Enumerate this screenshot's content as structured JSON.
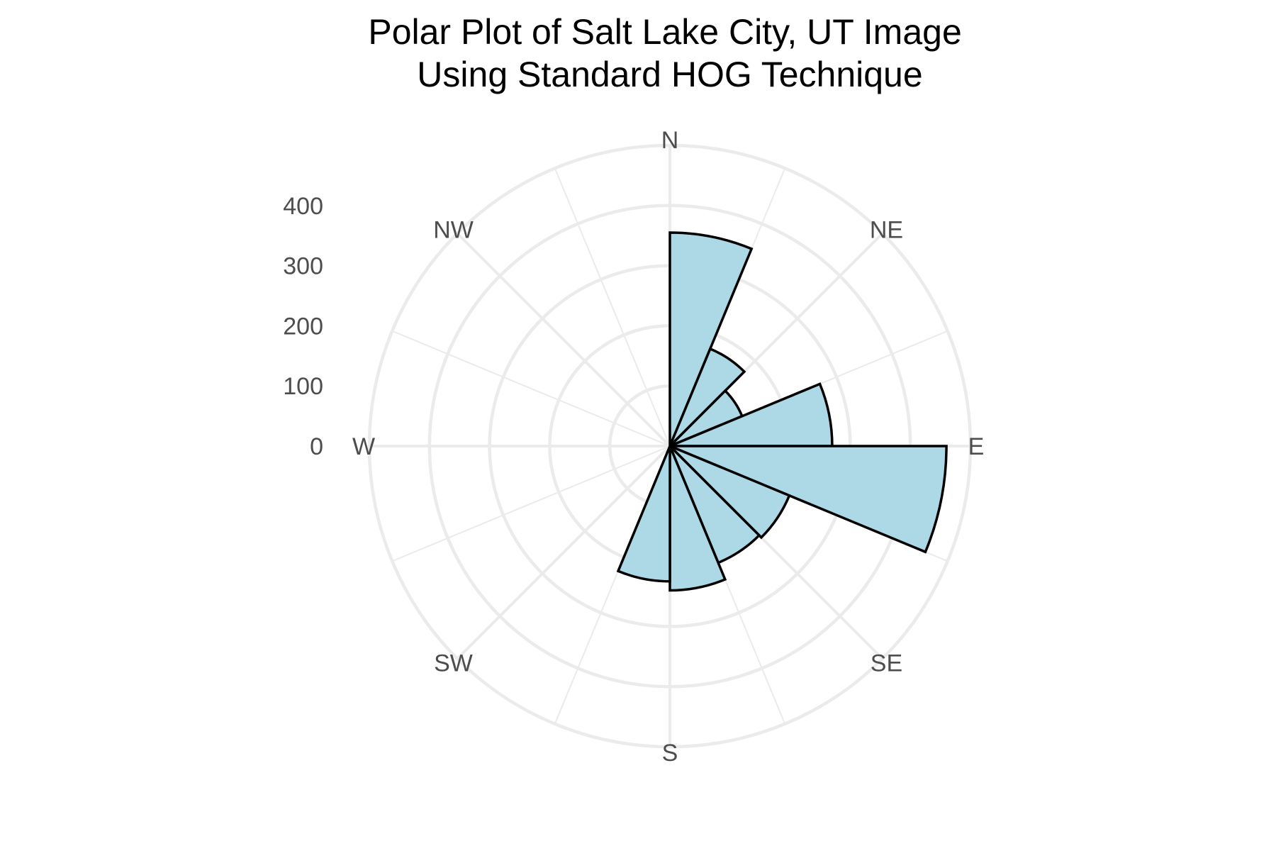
{
  "chart_data": {
    "type": "bar",
    "coordinate_system": "polar",
    "title": "Polar Plot of Salt Lake City, UT Image\nUsing Standard HOG Technique",
    "directions": [
      {
        "label": "N",
        "angle": 0
      },
      {
        "label": "NE",
        "angle": 45
      },
      {
        "label": "E",
        "angle": 90
      },
      {
        "label": "SE",
        "angle": 135
      },
      {
        "label": "S",
        "angle": 180
      },
      {
        "label": "SW",
        "angle": 225
      },
      {
        "label": "W",
        "angle": 270
      },
      {
        "label": "NW",
        "angle": 315
      }
    ],
    "radial_ticks": [
      0,
      100,
      200,
      300,
      400
    ],
    "rlim": [
      0,
      500
    ],
    "bins": [
      {
        "start": 0,
        "end": 22.5,
        "value": 355
      },
      {
        "start": 22.5,
        "end": 45,
        "value": 175
      },
      {
        "start": 45,
        "end": 67.5,
        "value": 130
      },
      {
        "start": 67.5,
        "end": 90,
        "value": 270
      },
      {
        "start": 90,
        "end": 112.5,
        "value": 460
      },
      {
        "start": 112.5,
        "end": 135,
        "value": 215
      },
      {
        "start": 135,
        "end": 157.5,
        "value": 210
      },
      {
        "start": 157.5,
        "end": 180,
        "value": 240
      },
      {
        "start": 180,
        "end": 202.5,
        "value": 225
      },
      {
        "start": 202.5,
        "end": 225,
        "value": 0
      },
      {
        "start": 225,
        "end": 247.5,
        "value": 0
      },
      {
        "start": 247.5,
        "end": 270,
        "value": 0
      },
      {
        "start": 270,
        "end": 292.5,
        "value": 0
      },
      {
        "start": 292.5,
        "end": 315,
        "value": 0
      },
      {
        "start": 315,
        "end": 337.5,
        "value": 0
      },
      {
        "start": 337.5,
        "end": 360,
        "value": 0
      }
    ],
    "grid": true,
    "legend": "none",
    "colors": {
      "bar_fill": "#add8e6",
      "bar_outline": "#000000",
      "grid": "#ebebeb",
      "axis_text": "#4d4d4d"
    }
  }
}
